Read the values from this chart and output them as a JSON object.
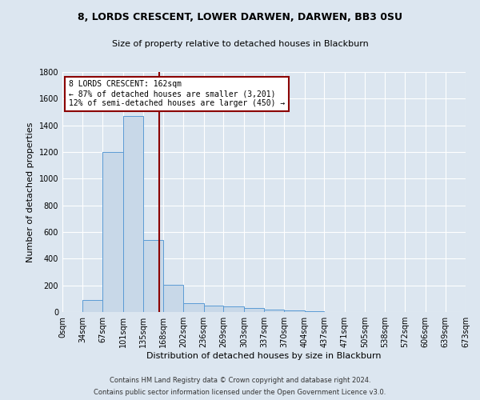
{
  "title1": "8, LORDS CRESCENT, LOWER DARWEN, DARWEN, BB3 0SU",
  "title2": "Size of property relative to detached houses in Blackburn",
  "xlabel": "Distribution of detached houses by size in Blackburn",
  "ylabel": "Number of detached properties",
  "footer1": "Contains HM Land Registry data © Crown copyright and database right 2024.",
  "footer2": "Contains public sector information licensed under the Open Government Licence v3.0.",
  "bin_labels": [
    "0sqm",
    "34sqm",
    "67sqm",
    "101sqm",
    "135sqm",
    "168sqm",
    "202sqm",
    "236sqm",
    "269sqm",
    "303sqm",
    "337sqm",
    "370sqm",
    "404sqm",
    "437sqm",
    "471sqm",
    "505sqm",
    "538sqm",
    "572sqm",
    "606sqm",
    "639sqm",
    "673sqm"
  ],
  "bar_values": [
    0,
    90,
    1200,
    1470,
    540,
    205,
    65,
    50,
    40,
    30,
    20,
    10,
    5,
    2,
    1,
    0,
    0,
    0,
    0,
    0
  ],
  "bar_color": "#c8d8e8",
  "bar_edge_color": "#5b9bd5",
  "property_line_x": 162,
  "bin_edges": [
    0,
    34,
    67,
    101,
    135,
    168,
    202,
    236,
    269,
    303,
    337,
    370,
    404,
    437,
    471,
    505,
    538,
    572,
    606,
    639,
    673
  ],
  "annotation_text": "8 LORDS CRESCENT: 162sqm\n← 87% of detached houses are smaller (3,201)\n12% of semi-detached houses are larger (450) →",
  "vline_color": "#8b0000",
  "annotation_box_color": "#ffffff",
  "annotation_box_edge": "#8b0000",
  "ylim": [
    0,
    1800
  ],
  "yticks": [
    0,
    200,
    400,
    600,
    800,
    1000,
    1200,
    1400,
    1600,
    1800
  ],
  "background_color": "#dce6f0",
  "grid_color": "#ffffff",
  "title1_fontsize": 9,
  "title2_fontsize": 8,
  "ylabel_fontsize": 8,
  "xlabel_fontsize": 8,
  "tick_fontsize": 7,
  "footer_fontsize": 6
}
